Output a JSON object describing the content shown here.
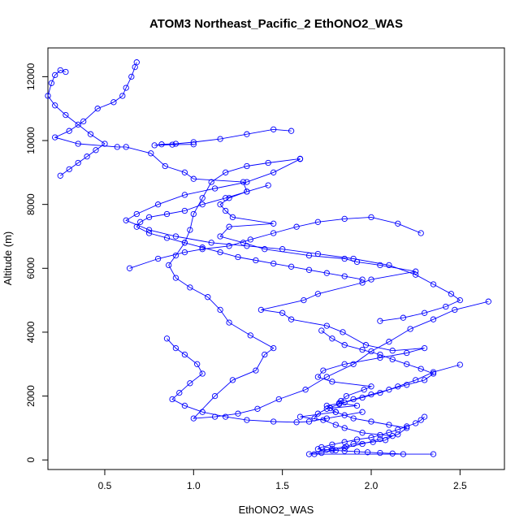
{
  "chart_data": {
    "type": "line+scatter",
    "title": "ATOM3 Northeast_Pacific_2 EthONO2_WAS",
    "xlabel": "EthONO2_WAS",
    "ylabel": "Altitude (m)",
    "xlim": [
      0.18,
      2.75
    ],
    "ylim": [
      -300,
      12900
    ],
    "xticks": [
      0.5,
      1.0,
      1.5,
      2.0,
      2.5
    ],
    "xtick_labels": [
      "0.5",
      "1.0",
      "1.5",
      "2.0",
      "2.5"
    ],
    "yticks": [
      0,
      2000,
      4000,
      6000,
      8000,
      10000,
      12000
    ],
    "ytick_labels": [
      "0",
      "2000",
      "4000",
      "6000",
      "8000",
      "10000",
      "12000"
    ],
    "grid": false,
    "color": "#0000ff",
    "marker": "open-circle",
    "series": [
      {
        "points": [
          [
            2.35,
            180
          ],
          [
            1.65,
            180
          ],
          [
            1.78,
            350
          ],
          [
            1.86,
            420
          ],
          [
            1.9,
            500
          ],
          [
            2.01,
            560
          ],
          [
            2.08,
            620
          ],
          [
            2.12,
            750
          ],
          [
            1.95,
            850
          ],
          [
            1.85,
            1000
          ],
          [
            1.8,
            1100
          ],
          [
            1.73,
            1250
          ],
          [
            1.6,
            1350
          ],
          [
            1.8,
            1500
          ],
          [
            1.77,
            1620
          ],
          [
            1.92,
            1700
          ],
          [
            1.82,
            1780
          ],
          [
            1.83,
            1850
          ],
          [
            1.86,
            2000
          ],
          [
            1.96,
            2200
          ],
          [
            2.0,
            2300
          ],
          [
            1.78,
            2450
          ],
          [
            1.7,
            2600
          ],
          [
            1.73,
            2800
          ],
          [
            1.85,
            3000
          ],
          [
            2.05,
            3200
          ],
          [
            2.2,
            3350
          ],
          [
            2.3,
            3500
          ],
          [
            2.12,
            3420
          ],
          [
            1.97,
            3600
          ],
          [
            1.84,
            4000
          ],
          [
            1.75,
            4200
          ],
          [
            1.55,
            4400
          ],
          [
            1.5,
            4600
          ],
          [
            1.38,
            4700
          ],
          [
            1.62,
            5000
          ],
          [
            1.7,
            5200
          ],
          [
            1.95,
            5550
          ],
          [
            2.0,
            5650
          ],
          [
            2.25,
            5900
          ],
          [
            2.05,
            6100
          ],
          [
            1.92,
            6200
          ],
          [
            1.85,
            6300
          ],
          [
            1.65,
            6400
          ],
          [
            1.4,
            6600
          ],
          [
            1.28,
            6800
          ],
          [
            1.15,
            7000
          ],
          [
            1.2,
            7300
          ],
          [
            1.45,
            7400
          ],
          [
            1.22,
            7600
          ],
          [
            1.18,
            7800
          ],
          [
            1.15,
            8000
          ],
          [
            1.2,
            8200
          ],
          [
            1.3,
            8400
          ],
          [
            1.28,
            8700
          ],
          [
            1.0,
            8800
          ],
          [
            0.95,
            9000
          ],
          [
            0.84,
            9200
          ],
          [
            0.76,
            9600
          ],
          [
            0.62,
            9800
          ],
          [
            0.57,
            9800
          ],
          [
            0.35,
            9900
          ],
          [
            0.22,
            10100
          ],
          [
            0.3,
            10300
          ],
          [
            0.38,
            10600
          ],
          [
            0.46,
            11000
          ],
          [
            0.55,
            11200
          ],
          [
            0.6,
            11400
          ],
          [
            0.62,
            11650
          ],
          [
            0.65,
            12000
          ],
          [
            0.67,
            12300
          ],
          [
            0.68,
            12450
          ]
        ]
      },
      {
        "points": [
          [
            2.66,
            4960
          ],
          [
            2.47,
            4700
          ],
          [
            2.35,
            4400
          ],
          [
            2.22,
            4100
          ],
          [
            2.1,
            3700
          ],
          [
            2.0,
            3400
          ],
          [
            1.9,
            3000
          ],
          [
            1.75,
            2600
          ],
          [
            1.63,
            2200
          ],
          [
            1.48,
            1900
          ],
          [
            1.36,
            1600
          ],
          [
            1.25,
            1450
          ],
          [
            1.12,
            1350
          ],
          [
            1.0,
            1300
          ],
          [
            1.12,
            2000
          ],
          [
            1.22,
            2500
          ],
          [
            1.35,
            2800
          ],
          [
            1.4,
            3300
          ],
          [
            1.45,
            3500
          ],
          [
            1.32,
            3900
          ],
          [
            1.2,
            4300
          ],
          [
            1.15,
            4700
          ],
          [
            1.08,
            5100
          ],
          [
            0.98,
            5400
          ],
          [
            0.9,
            5700
          ],
          [
            0.86,
            6100
          ],
          [
            0.9,
            6400
          ],
          [
            0.95,
            6800
          ],
          [
            0.98,
            7200
          ],
          [
            1.0,
            7700
          ],
          [
            1.05,
            8200
          ],
          [
            1.1,
            8700
          ],
          [
            1.18,
            9000
          ],
          [
            1.3,
            9200
          ],
          [
            1.42,
            9300
          ],
          [
            1.6,
            9430
          ]
        ]
      },
      {
        "points": [
          [
            1.6,
            9420
          ],
          [
            1.45,
            9000
          ],
          [
            1.3,
            8700
          ],
          [
            1.12,
            8500
          ],
          [
            0.95,
            8300
          ],
          [
            0.8,
            8000
          ],
          [
            0.68,
            7700
          ],
          [
            0.62,
            7500
          ],
          [
            0.75,
            7200
          ],
          [
            0.9,
            7000
          ],
          [
            1.1,
            6800
          ],
          [
            1.3,
            6700
          ],
          [
            1.5,
            6600
          ],
          [
            1.7,
            6450
          ],
          [
            1.9,
            6300
          ],
          [
            2.1,
            6100
          ],
          [
            2.25,
            5800
          ],
          [
            2.35,
            5500
          ],
          [
            2.45,
            5200
          ],
          [
            2.5,
            5000
          ],
          [
            2.42,
            4800
          ],
          [
            2.3,
            4600
          ],
          [
            2.18,
            4450
          ],
          [
            2.05,
            4350
          ]
        ]
      },
      {
        "points": [
          [
            2.5,
            2980
          ],
          [
            2.35,
            2750
          ],
          [
            2.25,
            2500
          ],
          [
            2.15,
            2300
          ],
          [
            2.05,
            2100
          ],
          [
            1.95,
            1950
          ],
          [
            1.85,
            1800
          ],
          [
            1.75,
            1700
          ],
          [
            1.8,
            1500
          ],
          [
            1.9,
            1300
          ],
          [
            2.0,
            1200
          ],
          [
            2.1,
            1100
          ],
          [
            2.2,
            1000
          ],
          [
            2.15,
            800
          ],
          [
            2.05,
            650
          ],
          [
            1.95,
            500
          ],
          [
            1.85,
            380
          ],
          [
            1.78,
            300
          ],
          [
            1.72,
            220
          ],
          [
            1.68,
            180
          ]
        ]
      },
      {
        "points": [
          [
            0.85,
            3800
          ],
          [
            0.9,
            3500
          ],
          [
            0.95,
            3300
          ],
          [
            1.02,
            3000
          ],
          [
            1.05,
            2700
          ],
          [
            0.98,
            2400
          ],
          [
            0.92,
            2100
          ],
          [
            0.88,
            1900
          ],
          [
            0.95,
            1700
          ],
          [
            1.05,
            1500
          ],
          [
            1.18,
            1350
          ],
          [
            1.3,
            1250
          ],
          [
            1.45,
            1200
          ],
          [
            1.58,
            1180
          ],
          [
            1.65,
            1200
          ],
          [
            1.75,
            1300
          ],
          [
            1.85,
            1400
          ],
          [
            1.95,
            1500
          ]
        ]
      },
      {
        "points": [
          [
            0.64,
            6000
          ],
          [
            0.8,
            6300
          ],
          [
            0.95,
            6500
          ],
          [
            1.05,
            6600
          ],
          [
            1.2,
            6700
          ],
          [
            1.32,
            6900
          ],
          [
            1.45,
            7100
          ],
          [
            1.58,
            7300
          ],
          [
            1.7,
            7450
          ],
          [
            1.85,
            7550
          ],
          [
            2.0,
            7600
          ],
          [
            2.15,
            7400
          ],
          [
            2.28,
            7100
          ]
        ]
      },
      {
        "points": [
          [
            1.55,
            10300
          ],
          [
            1.45,
            10350
          ],
          [
            1.3,
            10200
          ],
          [
            1.15,
            10050
          ],
          [
            1.0,
            9950
          ],
          [
            0.9,
            9900
          ],
          [
            0.82,
            9880
          ],
          [
            0.78,
            9850
          ],
          [
            0.88,
            9870
          ],
          [
            1.0,
            9880
          ]
        ]
      },
      {
        "points": [
          [
            0.25,
            8900
          ],
          [
            0.3,
            9100
          ],
          [
            0.35,
            9300
          ],
          [
            0.4,
            9500
          ],
          [
            0.45,
            9700
          ],
          [
            0.5,
            9900
          ],
          [
            0.42,
            10200
          ],
          [
            0.35,
            10500
          ],
          [
            0.28,
            10800
          ],
          [
            0.22,
            11100
          ],
          [
            0.18,
            11400
          ],
          [
            0.2,
            11800
          ],
          [
            0.22,
            12050
          ],
          [
            0.25,
            12200
          ],
          [
            0.28,
            12150
          ]
        ]
      },
      {
        "points": [
          [
            1.42,
            8600
          ],
          [
            1.3,
            8400
          ],
          [
            1.18,
            8200
          ],
          [
            1.05,
            8000
          ],
          [
            0.95,
            7800
          ],
          [
            0.85,
            7700
          ],
          [
            0.75,
            7600
          ],
          [
            0.7,
            7450
          ],
          [
            0.68,
            7300
          ],
          [
            0.75,
            7100
          ],
          [
            0.85,
            6950
          ],
          [
            0.95,
            6800
          ],
          [
            1.05,
            6650
          ],
          [
            1.15,
            6500
          ],
          [
            1.25,
            6350
          ],
          [
            1.35,
            6250
          ],
          [
            1.45,
            6150
          ],
          [
            1.55,
            6050
          ],
          [
            1.65,
            5950
          ],
          [
            1.75,
            5850
          ],
          [
            1.85,
            5750
          ],
          [
            1.95,
            5650
          ]
        ]
      },
      {
        "points": [
          [
            1.72,
            4050
          ],
          [
            1.78,
            3800
          ],
          [
            1.85,
            3600
          ],
          [
            1.95,
            3450
          ],
          [
            2.05,
            3300
          ],
          [
            2.12,
            3150
          ],
          [
            2.2,
            3000
          ],
          [
            2.28,
            2850
          ],
          [
            2.35,
            2700
          ],
          [
            2.3,
            2500
          ],
          [
            2.2,
            2350
          ],
          [
            2.1,
            2200
          ],
          [
            2.0,
            2050
          ],
          [
            1.9,
            1900
          ],
          [
            1.82,
            1750
          ],
          [
            1.75,
            1600
          ],
          [
            1.7,
            1450
          ],
          [
            1.68,
            1300
          ]
        ]
      },
      {
        "points": [
          [
            2.18,
            180
          ],
          [
            2.12,
            200
          ],
          [
            2.05,
            220
          ],
          [
            1.98,
            240
          ],
          [
            1.92,
            260
          ],
          [
            1.85,
            280
          ],
          [
            1.8,
            300
          ],
          [
            1.75,
            320
          ],
          [
            1.7,
            340
          ],
          [
            1.72,
            400
          ],
          [
            1.78,
            480
          ],
          [
            1.85,
            560
          ],
          [
            1.92,
            640
          ],
          [
            2.0,
            700
          ],
          [
            2.05,
            780
          ],
          [
            2.1,
            860
          ],
          [
            2.15,
            950
          ],
          [
            2.2,
            1050
          ],
          [
            2.25,
            1150
          ],
          [
            2.28,
            1250
          ],
          [
            2.3,
            1350
          ]
        ]
      }
    ]
  }
}
